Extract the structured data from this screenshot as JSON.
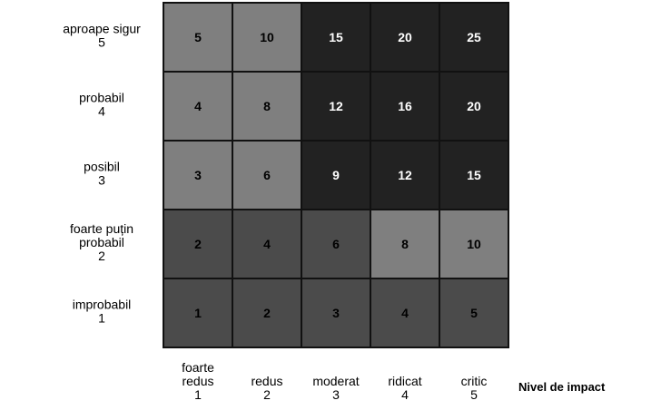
{
  "chart_data": {
    "type": "heatmap",
    "title": "",
    "xlabel": "Nivel de impact",
    "ylabel": "",
    "x_categories": [
      {
        "lines": [
          "foarte",
          "redus",
          "1"
        ]
      },
      {
        "lines": [
          "redus",
          "2"
        ]
      },
      {
        "lines": [
          "moderat",
          "3"
        ]
      },
      {
        "lines": [
          "ridicat",
          "4"
        ]
      },
      {
        "lines": [
          "critic",
          "5"
        ]
      }
    ],
    "y_categories": [
      {
        "lines": [
          "aproape sigur",
          "5"
        ]
      },
      {
        "lines": [
          "probabil",
          "4"
        ]
      },
      {
        "lines": [
          "posibil",
          "3"
        ]
      },
      {
        "lines": [
          "foarte puțin",
          "probabil",
          "2"
        ]
      },
      {
        "lines": [
          "improbabil",
          "1"
        ]
      }
    ],
    "values": [
      [
        5,
        10,
        15,
        20,
        25
      ],
      [
        4,
        8,
        12,
        16,
        20
      ],
      [
        3,
        6,
        9,
        12,
        15
      ],
      [
        2,
        4,
        6,
        8,
        10
      ],
      [
        1,
        2,
        3,
        4,
        5
      ]
    ],
    "levels": [
      [
        "medium",
        "medium",
        "high",
        "high",
        "high"
      ],
      [
        "medium",
        "medium",
        "high",
        "high",
        "high"
      ],
      [
        "medium",
        "medium",
        "high",
        "high",
        "high"
      ],
      [
        "low",
        "low",
        "low",
        "medium",
        "medium"
      ],
      [
        "low",
        "low",
        "low",
        "low",
        "low"
      ]
    ],
    "level_colors": {
      "low": "#4b4b4b",
      "medium": "#7f7f7f",
      "high": "#222222"
    },
    "level_text_colors": {
      "low": "#000000",
      "medium": "#000000",
      "high": "#ffffff"
    },
    "grid_line_color": "#111111"
  }
}
